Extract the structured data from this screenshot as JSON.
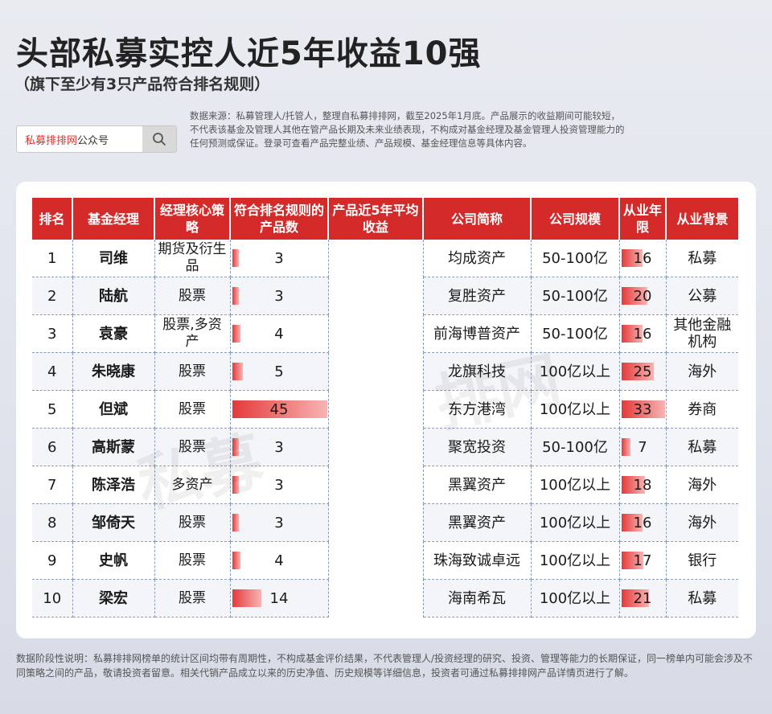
{
  "title": "头部私募实控人近5年收益10强",
  "subtitle": "（旗下至少有3只产品符合排名规则）",
  "search": {
    "brand": "私募排排网",
    "suffix": "公众号",
    "icon": "search-icon"
  },
  "disclaimer": "数据来源：私募管理人/托管人，整理自私募排排网，截至2025年1月底。产品展示的收益期间可能较短，不代表该基金及管理人其他在管产品长期及未来业绩表现，不构成对基金经理及基金管理人投资管理能力的任何预测或保证。登录可查看产品完整业绩、产品规模、基金经理信息等具体内容。",
  "table": {
    "headers": [
      "排名",
      "基金经理",
      "经理核心策略",
      "符合排名规则的产品数",
      "产品近5年平均收益",
      "公司简称",
      "公司规模",
      "从业年限",
      "从业背景"
    ],
    "rows": [
      {
        "rank": "1",
        "manager": "司维",
        "strategy": "期货及衍生品",
        "products": "3",
        "company": "均成资产",
        "scale": "50-100亿",
        "years": "16",
        "background": "私募"
      },
      {
        "rank": "2",
        "manager": "陆航",
        "strategy": "股票",
        "products": "3",
        "company": "复胜资产",
        "scale": "50-100亿",
        "years": "20",
        "background": "公募"
      },
      {
        "rank": "3",
        "manager": "袁豪",
        "strategy": "股票,多资产",
        "products": "4",
        "company": "前海博普资产",
        "scale": "50-100亿",
        "years": "16",
        "background": "其他金融机构"
      },
      {
        "rank": "4",
        "manager": "朱晓康",
        "strategy": "股票",
        "products": "5",
        "company": "龙旗科技",
        "scale": "100亿以上",
        "years": "25",
        "background": "海外"
      },
      {
        "rank": "5",
        "manager": "但斌",
        "strategy": "股票",
        "products": "45",
        "company": "东方港湾",
        "scale": "100亿以上",
        "years": "33",
        "background": "券商"
      },
      {
        "rank": "6",
        "manager": "高斯蒙",
        "strategy": "股票",
        "products": "3",
        "company": "聚宽投资",
        "scale": "50-100亿",
        "years": "7",
        "background": "私募"
      },
      {
        "rank": "7",
        "manager": "陈泽浩",
        "strategy": "多资产",
        "products": "3",
        "company": "黑翼资产",
        "scale": "100亿以上",
        "years": "18",
        "background": "海外"
      },
      {
        "rank": "8",
        "manager": "邹倚天",
        "strategy": "股票",
        "products": "3",
        "company": "黑翼资产",
        "scale": "100亿以上",
        "years": "16",
        "background": "海外"
      },
      {
        "rank": "9",
        "manager": "史帆",
        "strategy": "股票",
        "products": "4",
        "company": "珠海致诚卓远",
        "scale": "100亿以上",
        "years": "17",
        "background": "银行"
      },
      {
        "rank": "10",
        "manager": "梁宏",
        "strategy": "股票",
        "products": "14",
        "company": "海南希瓦",
        "scale": "100亿以上",
        "years": "21",
        "background": "私募"
      }
    ]
  },
  "watermark": {
    "left": "私募",
    "right": "排网"
  },
  "footnote": "数据阶段性说明：私募排排网榜单的统计区间均带有周期性，不构成基金评价结果，不代表管理人/投资经理的研究、投资、管理等能力的长期保证，同一榜单内可能会涉及不同策略之间的产品，敬请投资者留意。相关代销产品成立以来的历史净值、历史规模等详细信息，投资者可通过私募排排网产品详情页进行了解。",
  "colors": {
    "header_bg": "#d52a2a",
    "bar": "#e43a3a",
    "brand": "#d7322d"
  }
}
